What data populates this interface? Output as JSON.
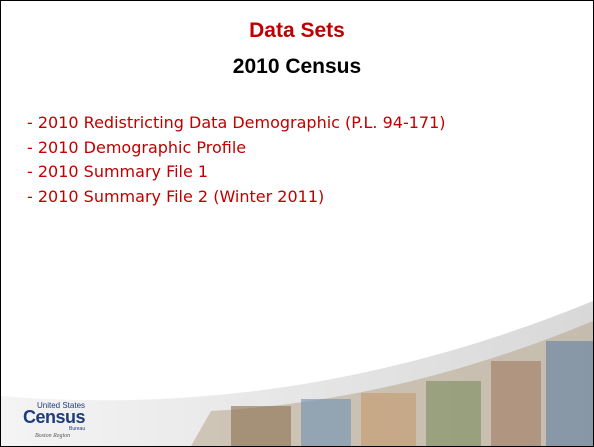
{
  "header": {
    "title": "Data Sets",
    "subtitle": "2010 Census"
  },
  "items": [
    "- 2010 Redistricting Data Demographic (P.L. 94-171)",
    "- 2010 Demographic Profile",
    "- 2010 Summary File 1",
    "- 2010 Summary File 2 (Winter 2011)"
  ],
  "logo": {
    "line1": "United States",
    "line2": "Census",
    "line3": "Bureau",
    "line4": "Boston Region"
  }
}
